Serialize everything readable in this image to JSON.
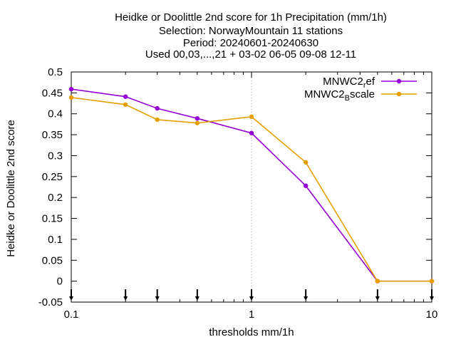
{
  "chart_data": {
    "type": "line",
    "title_lines": [
      "Heidke or Doolittle 2nd score  for 1h Precipitation (mm/1h)",
      "Selection: NorwayMountain     11 stations",
      "Period: 20240601-20240630",
      "Used 00,03,...,21 + 03-02 06-05 09-08 12-11"
    ],
    "xlabel": "thresholds mm/1h",
    "ylabel": "Heidke or Doolittle 2nd score",
    "x_scale": "log",
    "xlim": [
      0.1,
      10
    ],
    "ylim": [
      -0.05,
      0.5
    ],
    "x_ticks": [
      0.1,
      1,
      10
    ],
    "x_tick_labels": [
      "0.1",
      "1",
      "10"
    ],
    "y_ticks": [
      -0.05,
      0,
      0.05,
      0.1,
      0.15,
      0.2,
      0.25,
      0.3,
      0.35,
      0.4,
      0.45,
      0.5
    ],
    "y_tick_labels": [
      "-0.05",
      "0",
      "0.05",
      "0.1",
      "0.15",
      "0.2",
      "0.25",
      "0.3",
      "0.35",
      "0.4",
      "0.45",
      "0.5"
    ],
    "grid": true,
    "legend_position": "top-right",
    "threshold_markers": [
      0.1,
      0.2,
      0.3,
      0.5,
      1,
      2,
      5,
      10
    ],
    "series": [
      {
        "name_main": "MNWC2",
        "name_sub": "r",
        "name_rest": "ef",
        "color": "#9400d3",
        "x": [
          0.1,
          0.2,
          0.3,
          0.5,
          1,
          2,
          5,
          10
        ],
        "y": [
          0.459,
          0.441,
          0.413,
          0.389,
          0.354,
          0.228,
          0.0,
          0.0
        ]
      },
      {
        "name_main": "MNWC2",
        "name_sub": "B",
        "name_rest": "scale",
        "color": "#e69f00",
        "x": [
          0.1,
          0.2,
          0.3,
          0.5,
          1,
          2,
          5,
          10
        ],
        "y": [
          0.439,
          0.422,
          0.386,
          0.378,
          0.393,
          0.284,
          0.0,
          0.0
        ]
      }
    ]
  }
}
